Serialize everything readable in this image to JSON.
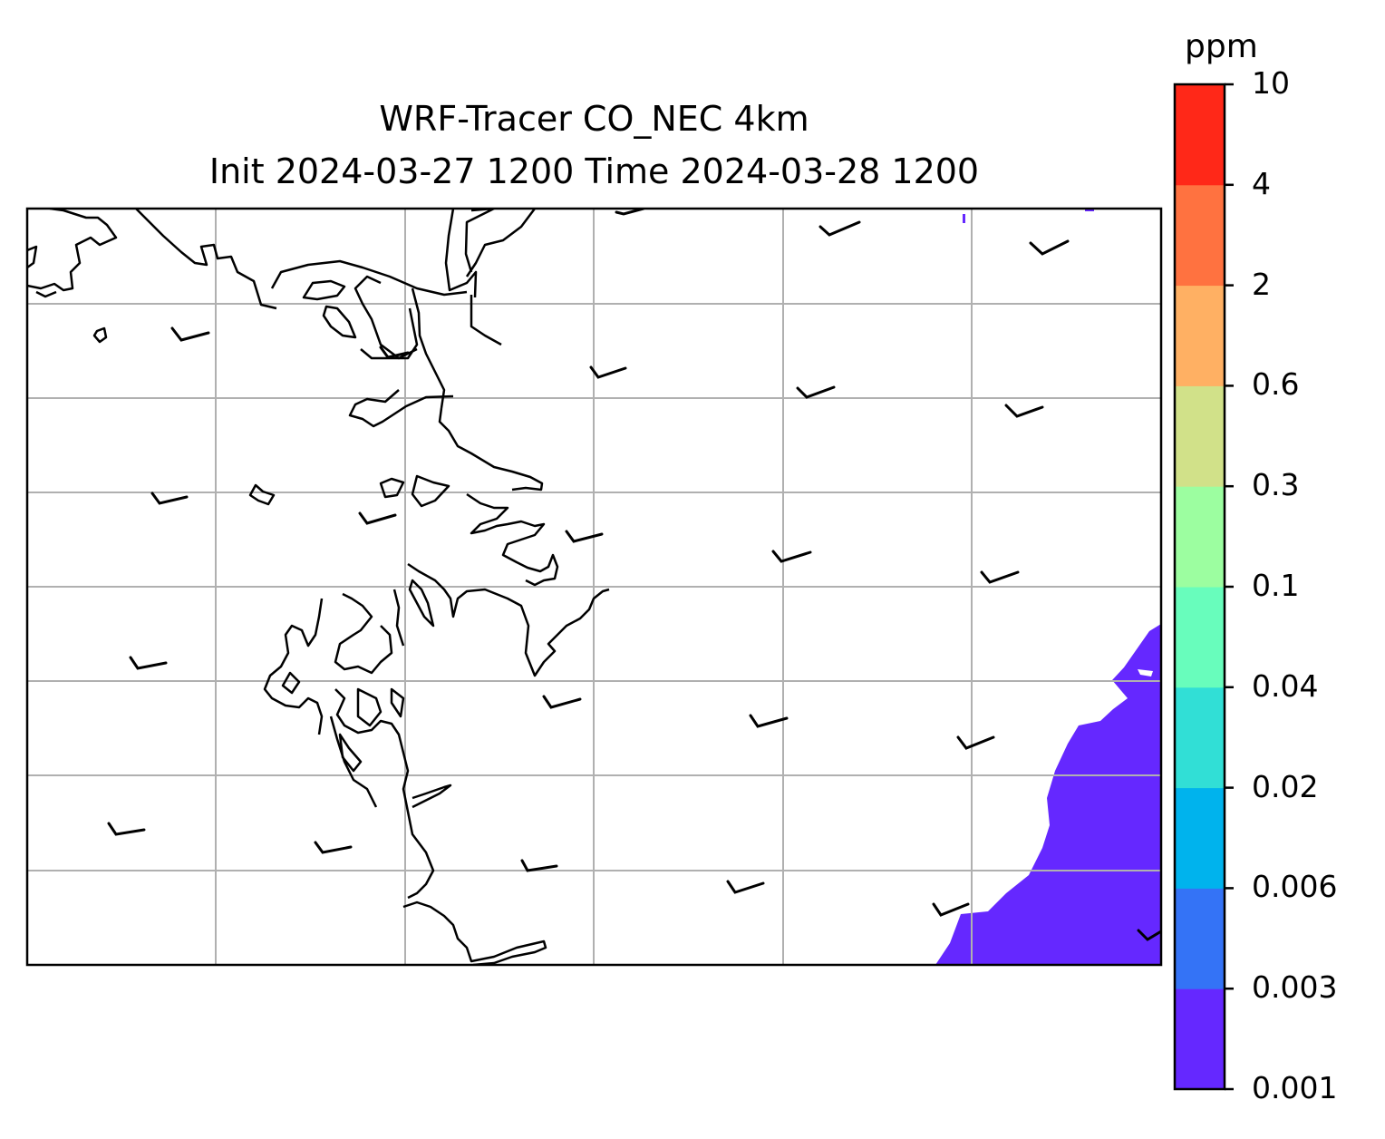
{
  "title_line1": "WRF-Tracer CO_NEC 4km",
  "title_line2": "Init 2024-03-27 1200 Time 2024-03-28 1200",
  "colorbar": {
    "unit": "ppm",
    "levels": [
      "0.001",
      "0.003",
      "0.006",
      "0.02",
      "0.04",
      "0.1",
      "0.3",
      "0.6",
      "2",
      "4",
      "10"
    ],
    "colors": [
      "#6528ff",
      "#3473f6",
      "#00b3ed",
      "#31dfd6",
      "#68fdbc",
      "#9cfea0",
      "#d1e189",
      "#ffb063",
      "#ff7240",
      "#ff2818"
    ]
  },
  "map": {
    "field": "CO_NEC",
    "units": "ppm",
    "shaded_region": "southeast corner over ocean, lowest band 0.001-0.003",
    "gridlines": true,
    "coastlines": true,
    "wind_barbs": true
  }
}
